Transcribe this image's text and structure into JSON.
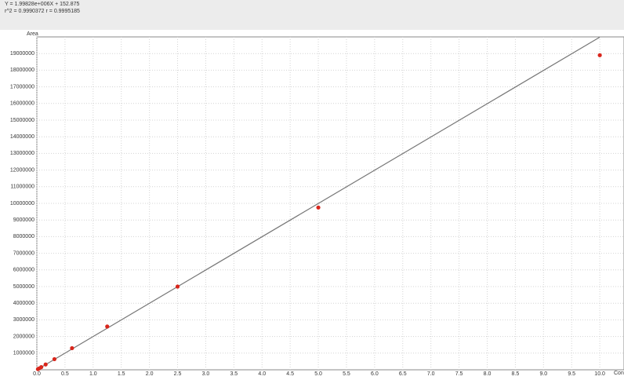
{
  "chart_data": {
    "type": "scatter",
    "equation": "Y = 1.99828e+006X + 152.875",
    "stats": "r^2 = 0.9990372  r = 0.9995185",
    "y_label": "Area",
    "x_label": "Con",
    "xlim": [
      0,
      10.43
    ],
    "ylim": [
      0,
      20000000
    ],
    "xticks": [
      {
        "value": 0,
        "label": "0.0"
      },
      0.5,
      {
        "value": 1,
        "label": "1.0"
      },
      1.5,
      {
        "value": 2,
        "label": "2.0"
      },
      2.5,
      {
        "value": 3,
        "label": "3.0"
      },
      3.5,
      {
        "value": 4,
        "label": "4.0"
      },
      4.5,
      {
        "value": 5,
        "label": "5.0"
      },
      5.5,
      {
        "value": 6,
        "label": "6.0"
      },
      6.5,
      {
        "value": 7,
        "label": "7.0"
      },
      7.5,
      {
        "value": 8,
        "label": "8.0"
      },
      8.5,
      {
        "value": 9,
        "label": "9.0"
      },
      9.5,
      {
        "value": 10,
        "label": "10.0"
      }
    ],
    "yticks": [
      1000000,
      2000000,
      3000000,
      4000000,
      5000000,
      6000000,
      7000000,
      8000000,
      9000000,
      10000000,
      11000000,
      12000000,
      13000000,
      14000000,
      15000000,
      16000000,
      17000000,
      18000000,
      19000000
    ],
    "grid": true,
    "series": [
      {
        "color": "#d9261c",
        "x": [
          0.0195,
          0.039,
          0.078,
          0.156,
          0.3125,
          0.625,
          1.25,
          2.5,
          5,
          10
        ],
        "values": [
          40000,
          80000,
          160000,
          320000,
          640000,
          1300000,
          2600000,
          5000000,
          9750000,
          18900000
        ]
      }
    ],
    "fit_line": {
      "color": "#777777",
      "x": [
        0,
        10
      ],
      "values": [
        152.875,
        19983000
      ]
    }
  }
}
